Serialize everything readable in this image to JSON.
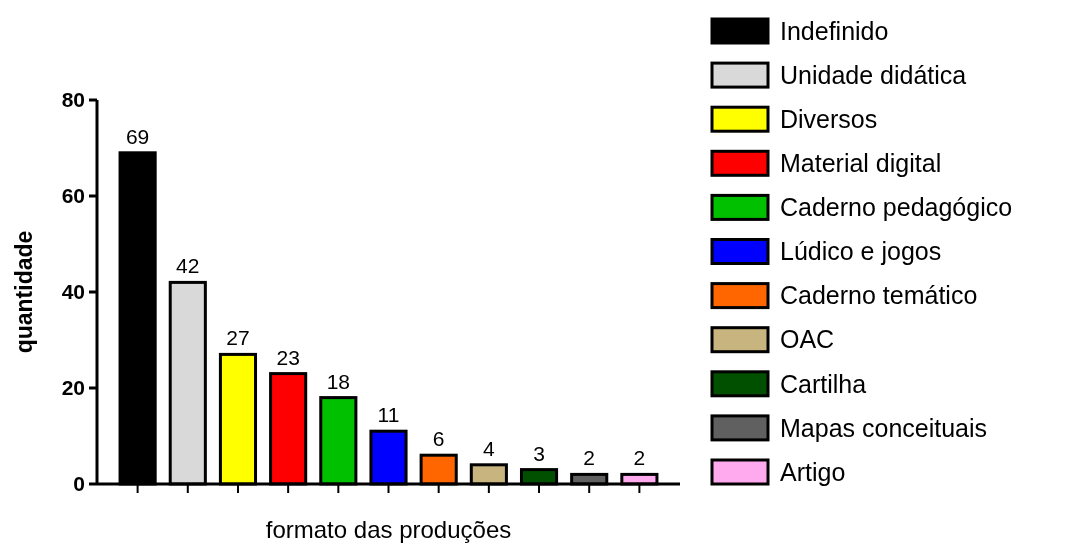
{
  "chart_data": {
    "type": "bar",
    "xlabel": "formato das produções",
    "ylabel": "quantidade",
    "categories": [
      null,
      null,
      null,
      null,
      null,
      null,
      null,
      null,
      null,
      null,
      null
    ],
    "series": [
      {
        "name": "Indefinido",
        "color": "#000000",
        "values": [
          69,
          null,
          null,
          null,
          null,
          null,
          null,
          null,
          null,
          null,
          null
        ]
      },
      {
        "name": "Unidade didática",
        "color": "#d9d9d9",
        "values": [
          null,
          42,
          null,
          null,
          null,
          null,
          null,
          null,
          null,
          null,
          null
        ]
      },
      {
        "name": "Diversos",
        "color": "#ffff00",
        "values": [
          null,
          null,
          27,
          null,
          null,
          null,
          null,
          null,
          null,
          null,
          null
        ]
      },
      {
        "name": "Material digital",
        "color": "#ff0000",
        "values": [
          null,
          null,
          null,
          23,
          null,
          null,
          null,
          null,
          null,
          null,
          null
        ]
      },
      {
        "name": "Caderno pedagógico",
        "color": "#00c000",
        "values": [
          null,
          null,
          null,
          null,
          18,
          null,
          null,
          null,
          null,
          null,
          null
        ]
      },
      {
        "name": "Lúdico e jogos",
        "color": "#0000ff",
        "values": [
          null,
          null,
          null,
          null,
          null,
          11,
          null,
          null,
          null,
          null,
          null
        ]
      },
      {
        "name": "Caderno temático",
        "color": "#ff6600",
        "values": [
          null,
          null,
          null,
          null,
          null,
          null,
          6,
          null,
          null,
          null,
          null
        ]
      },
      {
        "name": "OAC",
        "color": "#c8b47e",
        "values": [
          null,
          null,
          null,
          null,
          null,
          null,
          null,
          4,
          null,
          null,
          null
        ]
      },
      {
        "name": "Cartilha",
        "color": "#005000",
        "values": [
          null,
          null,
          null,
          null,
          null,
          null,
          null,
          null,
          3,
          null,
          null
        ]
      },
      {
        "name": "Mapas conceituais",
        "color": "#606060",
        "values": [
          null,
          null,
          null,
          null,
          null,
          null,
          null,
          null,
          null,
          2,
          null
        ]
      },
      {
        "name": "Artigo",
        "color": "#ffaaee",
        "values": [
          null,
          null,
          null,
          null,
          null,
          null,
          null,
          null,
          null,
          null,
          2
        ]
      }
    ],
    "ylim": [
      0,
      80
    ],
    "yticks": [
      0,
      20,
      40,
      60,
      80
    ],
    "tick_labels": "y",
    "legend": "right",
    "data_labels": true
  }
}
